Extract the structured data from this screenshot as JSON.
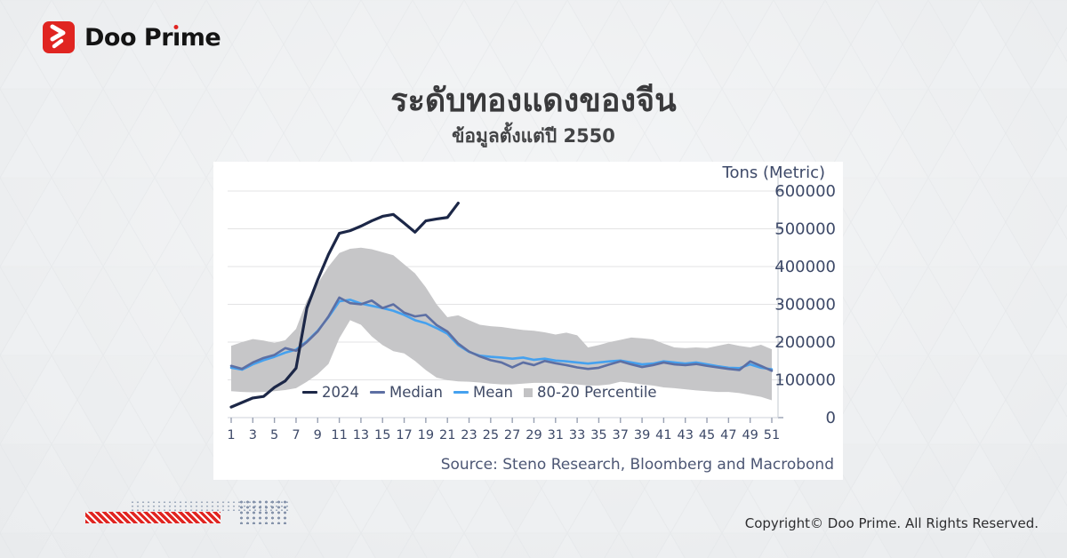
{
  "brand": {
    "name": "Doo Prime"
  },
  "header": {
    "title": "ระดับทองแดงของจีน",
    "subtitle": "ข้อมูลตั้งแต่ปี 2550"
  },
  "footer": {
    "copyright": "Copyright© Doo Prime. All Rights Reserved."
  },
  "colors": {
    "accent_red": "#e02521",
    "axis_text": "#3d4968",
    "grid": "#e3e3e4",
    "axis_line": "#cdd1d8",
    "card_bg": "#ffffff"
  },
  "chart_data": {
    "type": "line",
    "unit_label": "Tons (Metric)",
    "source": "Source: Steno Research, Bloomberg and Macrobond",
    "ylim": [
      0,
      600000
    ],
    "y_ticks": [
      0,
      100000,
      200000,
      300000,
      400000,
      500000,
      600000
    ],
    "x_tick_labels": [
      1,
      3,
      5,
      7,
      9,
      11,
      13,
      15,
      17,
      19,
      21,
      23,
      25,
      27,
      29,
      31,
      33,
      35,
      37,
      39,
      41,
      43,
      45,
      47,
      49,
      51
    ],
    "x_weeks": 51,
    "grid": true,
    "legend_position": "bottom-inside",
    "legend": [
      {
        "label": "2024",
        "type": "line",
        "color": "#1c2747"
      },
      {
        "label": "Median",
        "type": "line",
        "color": "#5d6fa3"
      },
      {
        "label": "Mean",
        "type": "line",
        "color": "#45a1ef"
      },
      {
        "label": "80-20 Percentile",
        "type": "band",
        "color": "#c2c2c4"
      }
    ],
    "series": [
      {
        "name": "2024",
        "color": "#1c2747",
        "width": 3.2,
        "values": [
          28000,
          40000,
          52000,
          56000,
          80000,
          97000,
          131000,
          290000,
          365000,
          432000,
          488000,
          495000,
          507000,
          521000,
          533000,
          538000,
          515000,
          491000,
          521000,
          526000,
          530000,
          568000
        ]
      },
      {
        "name": "Median",
        "color": "#5d6fa3",
        "width": 2.6,
        "values": [
          137000,
          129000,
          146000,
          158000,
          166000,
          184000,
          177000,
          200000,
          228000,
          268000,
          318000,
          303000,
          300000,
          310000,
          290000,
          300000,
          278000,
          268000,
          272000,
          245000,
          228000,
          196000,
          175000,
          162000,
          152000,
          146000,
          133000,
          146000,
          139000,
          150000,
          144000,
          139000,
          133000,
          129000,
          132000,
          141000,
          149000,
          141000,
          134000,
          139000,
          146000,
          141000,
          139000,
          142000,
          137000,
          133000,
          129000,
          126000,
          149000,
          137000,
          124000
        ]
      },
      {
        "name": "Mean",
        "color": "#45a1ef",
        "width": 2.6,
        "values": [
          132000,
          127000,
          141000,
          152000,
          161000,
          172000,
          180000,
          202000,
          230000,
          266000,
          308000,
          312000,
          302000,
          296000,
          290000,
          283000,
          272000,
          258000,
          250000,
          237000,
          222000,
          192000,
          174000,
          164000,
          161000,
          159000,
          156000,
          159000,
          153000,
          156000,
          151000,
          149000,
          146000,
          143000,
          146000,
          149000,
          151000,
          146000,
          141000,
          143000,
          149000,
          146000,
          143000,
          146000,
          141000,
          136000,
          132000,
          131000,
          141000,
          132000,
          128000
        ]
      }
    ],
    "band": {
      "name": "80-20 Percentile",
      "color": "#c6c6c8",
      "upper": [
        190000,
        200000,
        208000,
        204000,
        198000,
        205000,
        235000,
        310000,
        355000,
        400000,
        436000,
        447000,
        450000,
        446000,
        438000,
        430000,
        406000,
        382000,
        345000,
        300000,
        266000,
        271000,
        258000,
        246000,
        242000,
        240000,
        236000,
        232000,
        230000,
        226000,
        220000,
        225000,
        218000,
        186000,
        192000,
        200000,
        206000,
        212000,
        210000,
        207000,
        196000,
        186000,
        184000,
        186000,
        184000,
        190000,
        196000,
        190000,
        186000,
        193000,
        181000
      ],
      "lower": [
        70000,
        68000,
        67000,
        68000,
        70000,
        73000,
        78000,
        95000,
        115000,
        142000,
        210000,
        258000,
        246000,
        215000,
        192000,
        176000,
        170000,
        150000,
        126000,
        106000,
        99000,
        96000,
        95000,
        93000,
        90000,
        88000,
        88000,
        90000,
        92000,
        92000,
        92000,
        90000,
        88000,
        85000,
        85000,
        88000,
        95000,
        92000,
        88000,
        85000,
        80000,
        78000,
        75000,
        72000,
        70000,
        68000,
        68000,
        65000,
        60000,
        55000,
        46000
      ]
    }
  }
}
